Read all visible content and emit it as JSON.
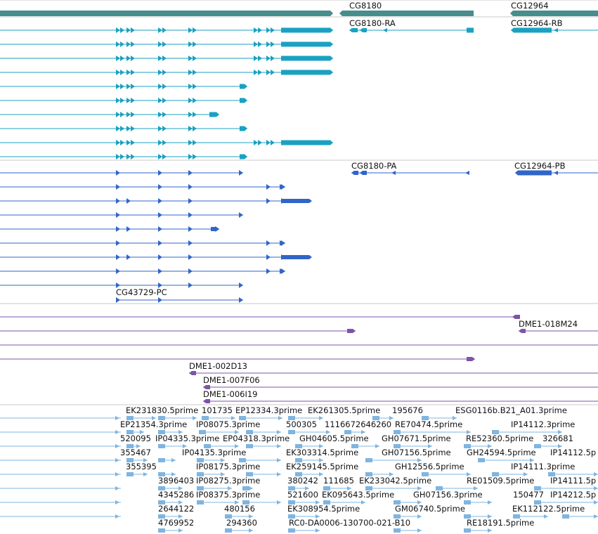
{
  "colors": {
    "gene_track": "#468e8b",
    "transcript_track": "#1ba1c1",
    "cds_track": "#3265c8",
    "clone_track": "#7b55a7",
    "est_track": "#7fb5e0",
    "divider": "#c8c8c8"
  },
  "tracks": [
    {
      "id": "genes",
      "labels": [
        "CG8180",
        "CG12964"
      ]
    },
    {
      "id": "transcripts",
      "labels": [
        "CG8180-RA",
        "CG12964-RB"
      ]
    },
    {
      "id": "proteins",
      "labels": [
        "CG8180-PA",
        "CG12964-PB",
        "CG43729-PC"
      ]
    },
    {
      "id": "clones",
      "labels": [
        "DME1-018M24",
        "DME1-002D13",
        "DME1-007F06",
        "DME1-006I19"
      ]
    },
    {
      "id": "ests",
      "labels": [
        "EK231830.5prime",
        "101735",
        "EP12334.3prime",
        "EK261305.5prime",
        "195676",
        "ESG0116b.B21_A01.3prime",
        "EP21354.3prime",
        "IP08075.3prime",
        "500305",
        "1116672646260",
        "RE70474.5prime",
        "IP14112.3prime",
        "520095",
        "IP04335.3prime",
        "EP04318.3prime",
        "GH04605.5prime",
        "GH07671.5prime",
        "RE52360.5prime",
        "326681",
        "355467",
        "IP04135.3prime",
        "EK303314.5prime",
        "GH07156.5prime",
        "GH24594.5prime",
        "IP14112.5p",
        "355395",
        "IP08175.3prime",
        "EK259145.5prime",
        "GH12556.5prime",
        "IP14111.3prime",
        "3896403",
        "IP08275.3prime",
        "380242",
        "111685",
        "EK233042.5prime",
        "RE01509.5prime",
        "IP14111.5p",
        "4345286",
        "IP08375.3prime",
        "521600",
        "EK095643.5prime",
        "GH07156.3prime",
        "150477",
        "IP14212.5p",
        "2644122",
        "480156",
        "EK308954.5prime",
        "GM06740.5prime",
        "EK112122.5prime",
        "4769952",
        "294360",
        "RC0-DA0006-130700-021-B10",
        "RE18191.5prime"
      ]
    }
  ]
}
